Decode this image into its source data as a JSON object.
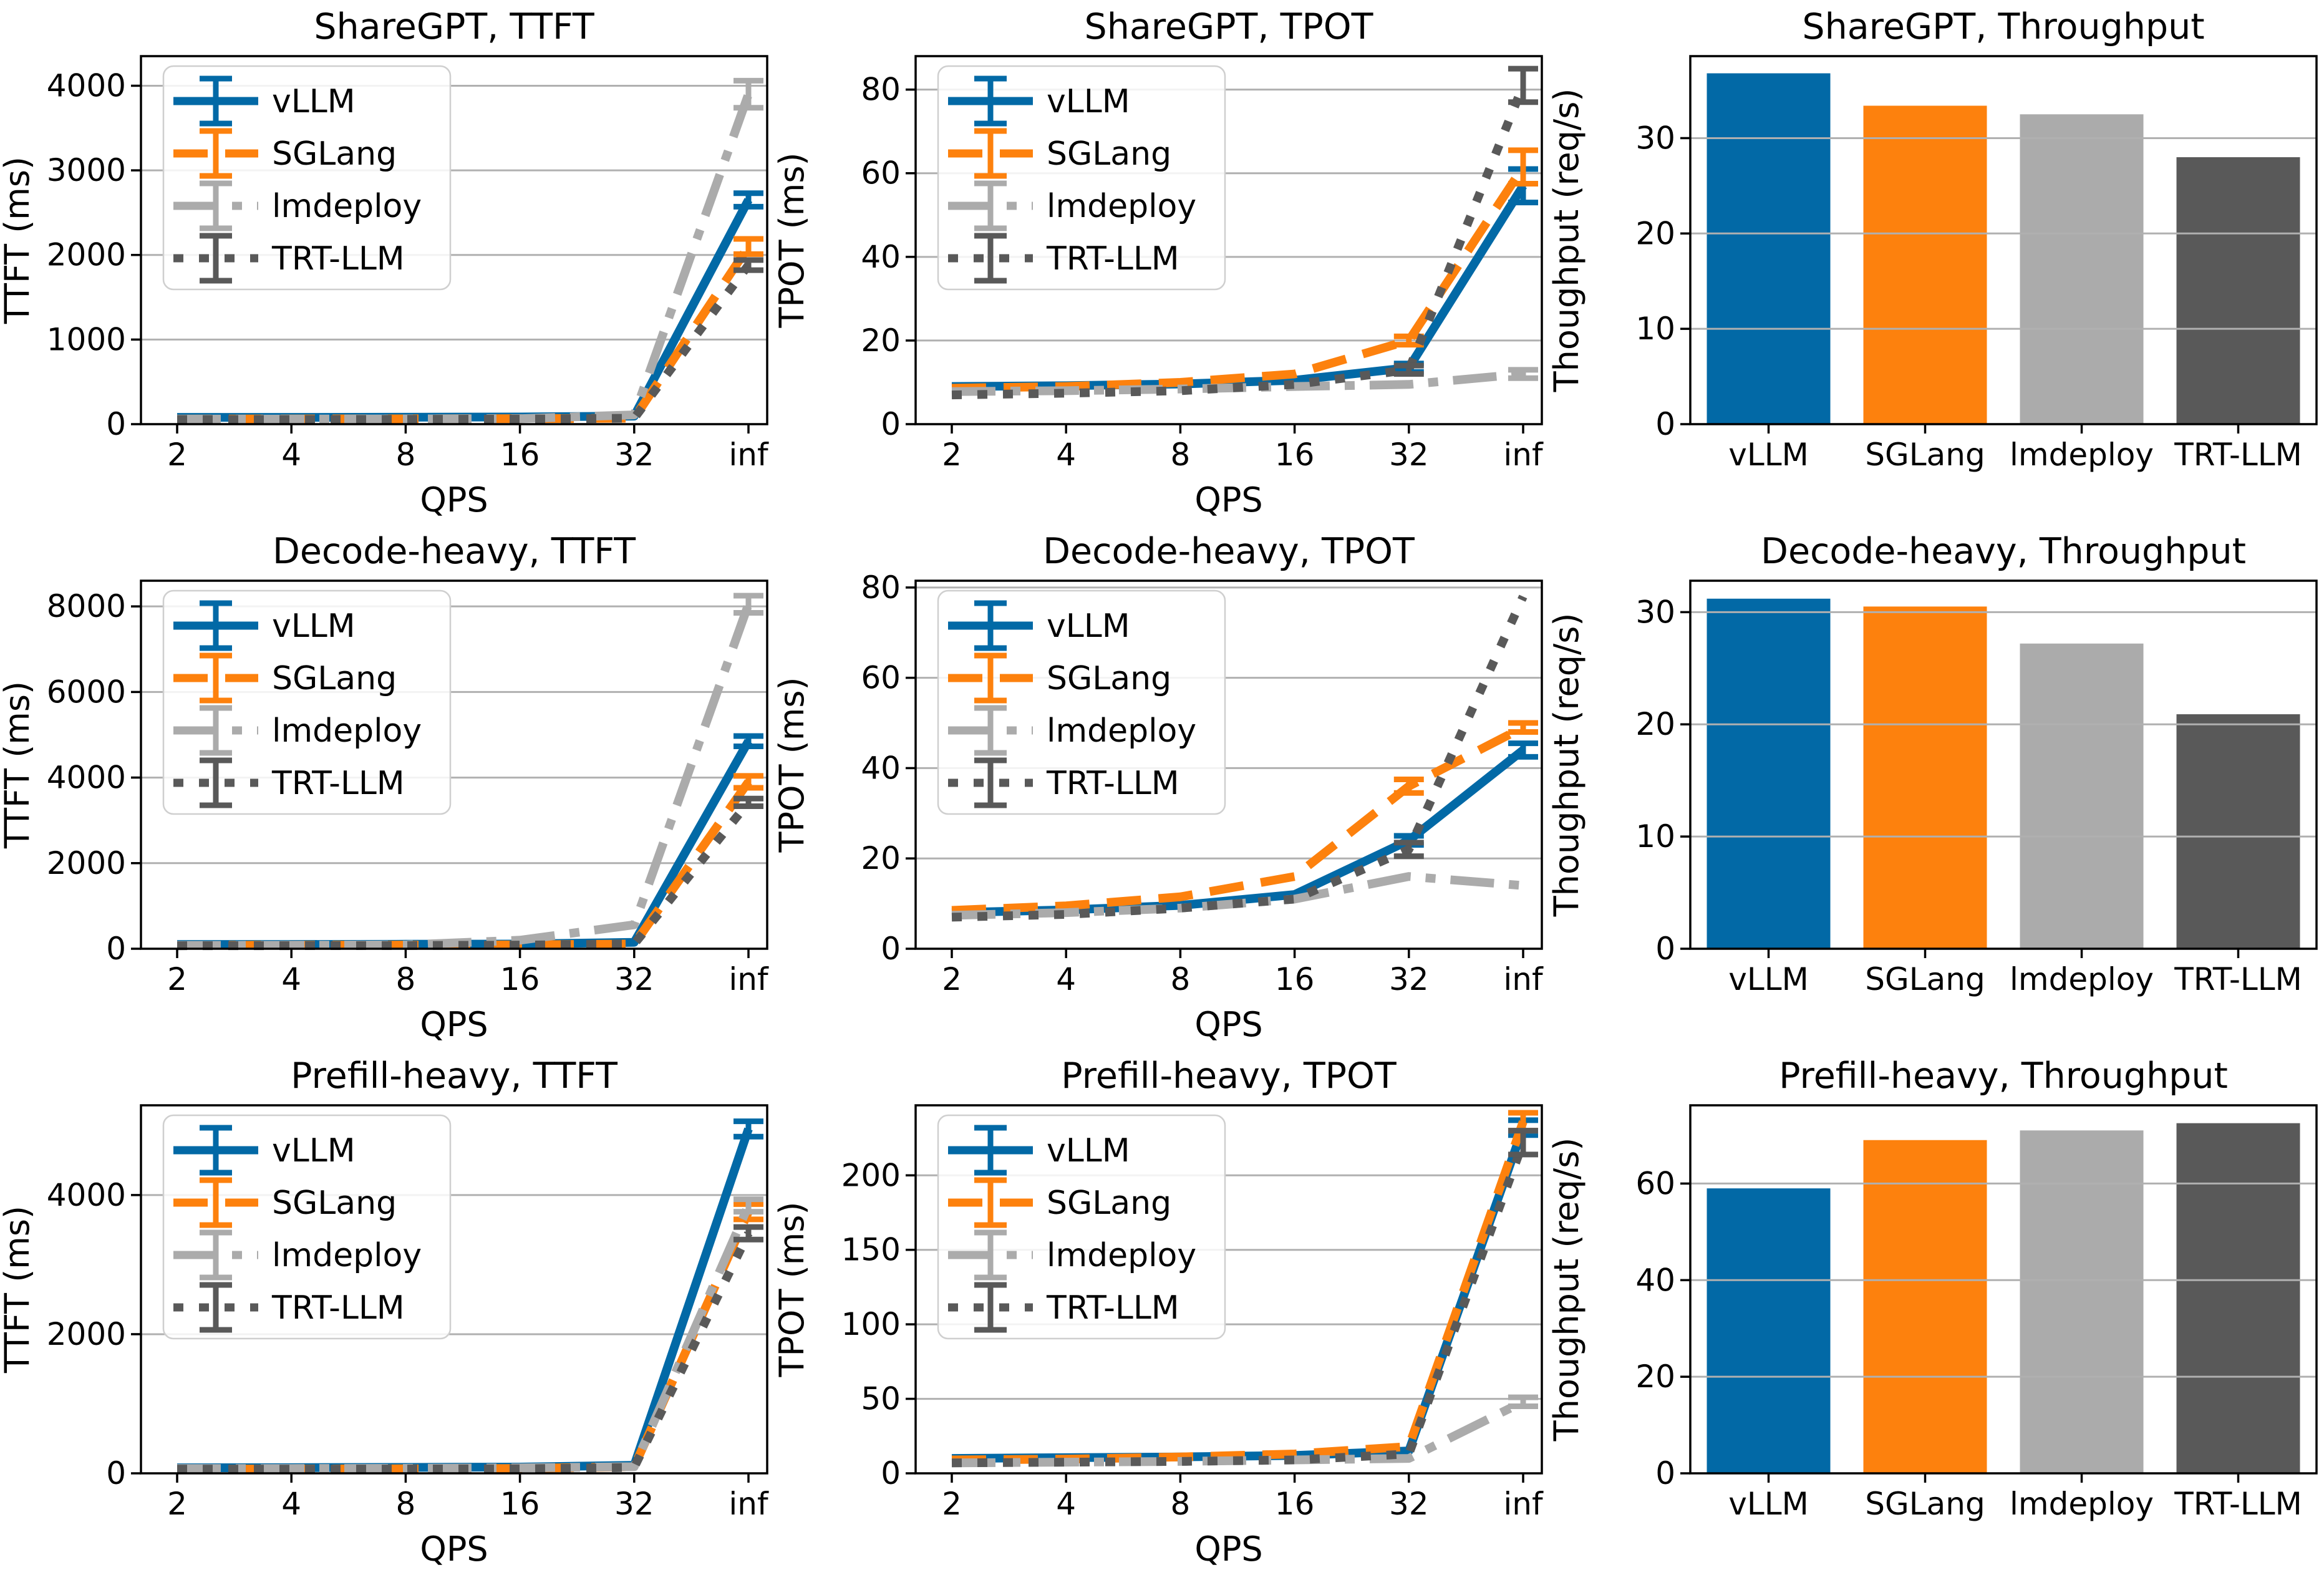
{
  "figure": {
    "background": "#ffffff",
    "grid_color": "#b0b0b0",
    "axis_color": "#000000",
    "legend_border_color": "#cfcfcf"
  },
  "series_styles": [
    {
      "name": "vLLM",
      "color": "#0269a6",
      "dash": "solid"
    },
    {
      "name": "SGLang",
      "color": "#fd810d",
      "dash": "dashed"
    },
    {
      "name": "lmdeploy",
      "color": "#ababab",
      "dash": "dashdot"
    },
    {
      "name": "TRT-LLM",
      "color": "#595959",
      "dash": "dotted"
    }
  ],
  "chart_data": [
    {
      "type": "line",
      "title": "ShareGPT, TTFT",
      "xlabel": "QPS",
      "ylabel": "TTFT (ms)",
      "x_ticklabels": [
        "2",
        "4",
        "8",
        "16",
        "32",
        "inf"
      ],
      "yticks": [
        0,
        1000,
        2000,
        3000,
        4000
      ],
      "ylim": [
        0,
        4350
      ],
      "grid": true,
      "legend": "upper-left",
      "series": [
        {
          "name": "vLLM",
          "values": [
            80,
            80,
            82,
            85,
            95,
            2650
          ],
          "errors": [
            0,
            0,
            0,
            0,
            0,
            80
          ]
        },
        {
          "name": "SGLang",
          "values": [
            60,
            62,
            63,
            65,
            70,
            2100
          ],
          "errors": [
            0,
            0,
            0,
            0,
            0,
            90
          ]
        },
        {
          "name": "lmdeploy",
          "values": [
            60,
            60,
            62,
            65,
            110,
            3900
          ],
          "errors": [
            0,
            0,
            0,
            0,
            0,
            160
          ]
        },
        {
          "name": "TRT-LLM",
          "values": [
            55,
            55,
            57,
            60,
            70,
            1880
          ],
          "errors": [
            0,
            0,
            0,
            0,
            0,
            60
          ]
        }
      ]
    },
    {
      "type": "line",
      "title": "ShareGPT, TPOT",
      "xlabel": "QPS",
      "ylabel": "TPOT (ms)",
      "x_ticklabels": [
        "2",
        "4",
        "8",
        "16",
        "32",
        "inf"
      ],
      "yticks": [
        0,
        20,
        40,
        60,
        80
      ],
      "ylim": [
        0,
        88
      ],
      "grid": true,
      "legend": "upper-left",
      "series": [
        {
          "name": "vLLM",
          "values": [
            9,
            9.2,
            9.6,
            10.5,
            13.5,
            57
          ],
          "errors": [
            0,
            0,
            0,
            0,
            1,
            4
          ]
        },
        {
          "name": "SGLang",
          "values": [
            8.6,
            9,
            10,
            12,
            20,
            61.5
          ],
          "errors": [
            0,
            0,
            0,
            0,
            1,
            4
          ]
        },
        {
          "name": "lmdeploy",
          "values": [
            7.8,
            8,
            8.4,
            9,
            9.5,
            12
          ],
          "errors": [
            0,
            0,
            0,
            0,
            0,
            1
          ]
        },
        {
          "name": "TRT-LLM",
          "values": [
            7,
            7.4,
            8,
            9.5,
            13,
            81
          ],
          "errors": [
            0,
            0,
            0,
            0,
            1,
            4
          ]
        }
      ]
    },
    {
      "type": "bar",
      "title": "ShareGPT, Throughput",
      "xlabel": "",
      "ylabel": "Thoughput (req/s)",
      "categories": [
        "vLLM",
        "SGLang",
        "lmdeploy",
        "TRT-LLM"
      ],
      "values": [
        36.8,
        33.4,
        32.5,
        28.0
      ],
      "yticks": [
        0,
        10,
        20,
        30
      ],
      "ylim": [
        0,
        38.6
      ],
      "grid": true,
      "legend": false
    },
    {
      "type": "line",
      "title": "Decode-heavy, TTFT",
      "xlabel": "QPS",
      "ylabel": "TTFT (ms)",
      "x_ticklabels": [
        "2",
        "4",
        "8",
        "16",
        "32",
        "inf"
      ],
      "yticks": [
        0,
        2000,
        4000,
        6000,
        8000
      ],
      "ylim": [
        0,
        8600
      ],
      "grid": true,
      "legend": "upper-left",
      "series": [
        {
          "name": "vLLM",
          "values": [
            100,
            100,
            105,
            110,
            150,
            4850
          ],
          "errors": [
            0,
            0,
            0,
            0,
            0,
            120
          ]
        },
        {
          "name": "SGLang",
          "values": [
            80,
            82,
            85,
            90,
            110,
            3900
          ],
          "errors": [
            0,
            0,
            0,
            0,
            0,
            140
          ]
        },
        {
          "name": "lmdeploy",
          "values": [
            80,
            82,
            90,
            200,
            560,
            8050
          ],
          "errors": [
            0,
            0,
            0,
            0,
            0,
            200
          ]
        },
        {
          "name": "TRT-LLM",
          "values": [
            70,
            72,
            75,
            85,
            110,
            3420
          ],
          "errors": [
            0,
            0,
            0,
            0,
            0,
            90
          ]
        }
      ]
    },
    {
      "type": "line",
      "title": "Decode-heavy, TPOT",
      "xlabel": "QPS",
      "ylabel": "TPOT (ms)",
      "x_ticklabels": [
        "2",
        "4",
        "8",
        "16",
        "32",
        "inf"
      ],
      "yticks": [
        0,
        20,
        40,
        60,
        80
      ],
      "ylim": [
        0,
        81.5
      ],
      "grid": true,
      "legend": "upper-left",
      "series": [
        {
          "name": "vLLM",
          "values": [
            8,
            8.6,
            9.6,
            12,
            24,
            44
          ],
          "errors": [
            0,
            0,
            0,
            0,
            1,
            1.5
          ]
        },
        {
          "name": "SGLang",
          "values": [
            8.5,
            9.5,
            11.5,
            16,
            36,
            49
          ],
          "errors": [
            0,
            0,
            0,
            0,
            1.5,
            1
          ]
        },
        {
          "name": "lmdeploy",
          "values": [
            7.4,
            8,
            9,
            11,
            16,
            14
          ],
          "errors": [
            0,
            0,
            0,
            0,
            0,
            0
          ]
        },
        {
          "name": "TRT-LLM",
          "values": [
            7,
            7.6,
            9,
            11,
            22,
            78
          ],
          "errors": [
            0,
            0,
            0,
            0,
            1.5,
            0
          ]
        }
      ]
    },
    {
      "type": "bar",
      "title": "Decode-heavy, Throughput",
      "xlabel": "",
      "ylabel": "Thoughput (req/s)",
      "categories": [
        "vLLM",
        "SGLang",
        "lmdeploy",
        "TRT-LLM"
      ],
      "values": [
        31.2,
        30.5,
        27.2,
        20.9
      ],
      "yticks": [
        0,
        10,
        20,
        30
      ],
      "ylim": [
        0,
        32.8
      ],
      "grid": true,
      "legend": false
    },
    {
      "type": "line",
      "title": "Prefill-heavy, TTFT",
      "xlabel": "QPS",
      "ylabel": "TTFT (ms)",
      "x_ticklabels": [
        "2",
        "4",
        "8",
        "16",
        "32",
        "inf"
      ],
      "yticks": [
        0,
        2000,
        4000
      ],
      "ylim": [
        0,
        5290
      ],
      "grid": true,
      "legend": "upper-left",
      "series": [
        {
          "name": "vLLM",
          "values": [
            80,
            82,
            85,
            90,
            115,
            4950
          ],
          "errors": [
            0,
            0,
            0,
            0,
            0,
            110
          ]
        },
        {
          "name": "SGLang",
          "values": [
            60,
            62,
            65,
            70,
            95,
            3760
          ],
          "errors": [
            0,
            0,
            0,
            0,
            0,
            110
          ]
        },
        {
          "name": "lmdeploy",
          "values": [
            70,
            70,
            72,
            80,
            95,
            3850
          ],
          "errors": [
            0,
            0,
            0,
            0,
            0,
            90
          ]
        },
        {
          "name": "TRT-LLM",
          "values": [
            60,
            60,
            62,
            65,
            85,
            3450
          ],
          "errors": [
            0,
            0,
            0,
            0,
            0,
            90
          ]
        }
      ]
    },
    {
      "type": "line",
      "title": "Prefill-heavy, TPOT",
      "xlabel": "QPS",
      "ylabel": "TPOT (ms)",
      "x_ticklabels": [
        "2",
        "4",
        "8",
        "16",
        "32",
        "inf"
      ],
      "yticks": [
        0,
        50,
        100,
        150,
        200
      ],
      "ylim": [
        0,
        247
      ],
      "grid": true,
      "legend": "upper-left",
      "series": [
        {
          "name": "vLLM",
          "values": [
            10,
            10.5,
            11,
            12,
            15,
            232
          ],
          "errors": [
            0,
            0,
            0,
            0,
            0,
            5
          ]
        },
        {
          "name": "SGLang",
          "values": [
            9,
            9.5,
            11,
            13,
            18,
            236
          ],
          "errors": [
            0,
            0,
            0,
            0,
            0,
            6
          ]
        },
        {
          "name": "lmdeploy",
          "values": [
            7,
            7.5,
            8,
            9,
            10,
            48
          ],
          "errors": [
            0,
            0,
            0,
            0,
            0,
            3
          ]
        },
        {
          "name": "TRT-LLM",
          "values": [
            7,
            7.5,
            8,
            9,
            13,
            222
          ],
          "errors": [
            0,
            0,
            0,
            0,
            0,
            8
          ]
        }
      ]
    },
    {
      "type": "bar",
      "title": "Prefill-heavy, Throughput",
      "xlabel": "",
      "ylabel": "Thoughput (req/s)",
      "categories": [
        "vLLM",
        "SGLang",
        "lmdeploy",
        "TRT-LLM"
      ],
      "values": [
        59,
        69,
        71,
        72.5
      ],
      "yticks": [
        0,
        20,
        40,
        60
      ],
      "ylim": [
        0,
        76.2
      ],
      "grid": true,
      "legend": false
    }
  ]
}
